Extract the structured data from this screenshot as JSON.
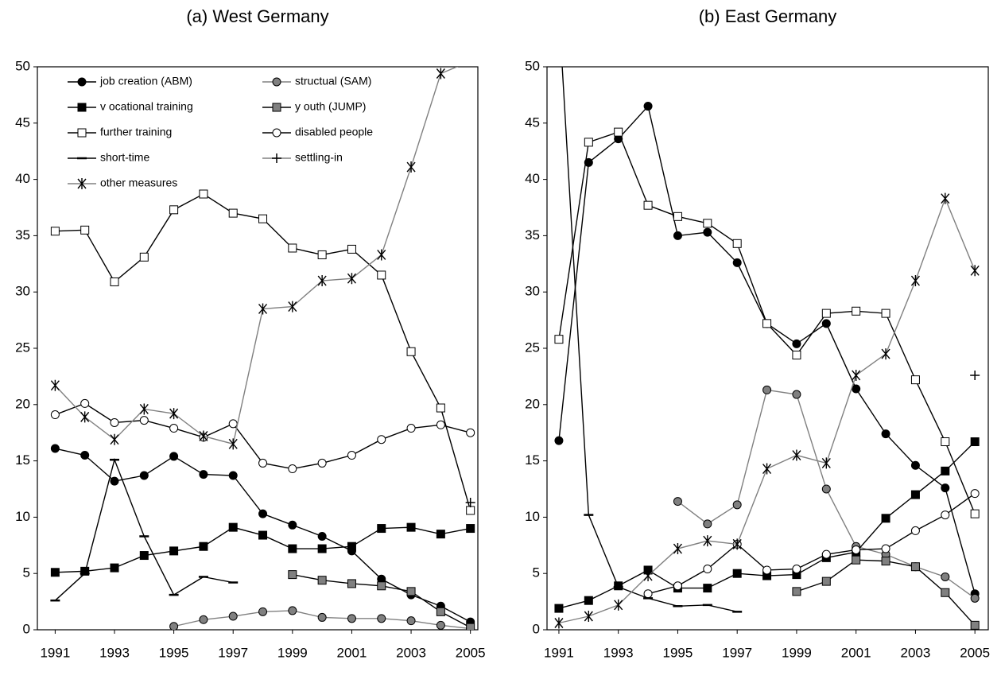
{
  "chart_data": [
    {
      "type": "line",
      "title": "(a) West Germany",
      "legend": "upper left",
      "x": [
        1991,
        1992,
        1993,
        1994,
        1995,
        1996,
        1997,
        1998,
        1999,
        2000,
        2001,
        2002,
        2003,
        2004,
        2005
      ],
      "xlim": [
        1990.4,
        2005.25
      ],
      "xticks": [
        1991,
        1993,
        1995,
        1997,
        1999,
        2001,
        2003,
        2005
      ],
      "ylim": [
        0,
        50
      ],
      "yticks": [
        0,
        5,
        10,
        15,
        20,
        25,
        30,
        35,
        40,
        45,
        50
      ],
      "series": [
        {
          "name": "job creation (ABM)",
          "color": "#000000",
          "marker": "circle",
          "marker_fill": "#000000",
          "values": [
            16.1,
            15.5,
            13.2,
            13.7,
            15.4,
            13.8,
            13.7,
            10.3,
            9.3,
            8.3,
            7.0,
            4.5,
            3.1,
            2.1,
            0.7
          ]
        },
        {
          "name": "structual (SAM)",
          "color": "#808080",
          "marker": "circle",
          "marker_fill": "#808080",
          "values": [
            null,
            null,
            null,
            null,
            0.3,
            0.9,
            1.2,
            1.6,
            1.7,
            1.1,
            1.0,
            1.0,
            0.8,
            0.4,
            0.1
          ]
        },
        {
          "name": "v ocational training",
          "color": "#000000",
          "marker": "square",
          "marker_fill": "#000000",
          "values": [
            5.1,
            5.2,
            5.5,
            6.6,
            7.0,
            7.4,
            9.1,
            8.4,
            7.2,
            7.2,
            7.4,
            9.0,
            9.1,
            8.5,
            9.0
          ]
        },
        {
          "name": "y outh (JUMP)",
          "color": "#000000",
          "marker": "square",
          "marker_fill": "#808080",
          "values": [
            null,
            null,
            null,
            null,
            null,
            null,
            null,
            null,
            4.9,
            4.4,
            4.1,
            3.9,
            3.4,
            1.6,
            0.2
          ]
        },
        {
          "name": "further training",
          "color": "#000000",
          "marker": "square",
          "marker_fill": "#ffffff",
          "values": [
            35.4,
            35.5,
            30.9,
            33.1,
            37.3,
            38.7,
            37.0,
            36.5,
            33.9,
            33.3,
            33.8,
            31.5,
            24.7,
            19.7,
            10.6
          ]
        },
        {
          "name": "disabled people",
          "color": "#000000",
          "marker": "circle",
          "marker_fill": "#ffffff",
          "values": [
            19.1,
            20.1,
            18.4,
            18.6,
            17.9,
            17.1,
            18.3,
            14.8,
            14.3,
            14.8,
            15.5,
            16.9,
            17.9,
            18.2,
            17.5
          ]
        },
        {
          "name": "short-time",
          "color": "#000000",
          "marker": "dash",
          "marker_fill": "#000000",
          "values": [
            2.6,
            5.0,
            15.1,
            8.3,
            3.1,
            4.7,
            4.2,
            null,
            null,
            null,
            null,
            null,
            null,
            null,
            null
          ]
        },
        {
          "name": "settling-in",
          "color": "#808080",
          "marker": "plus",
          "marker_fill": "#000000",
          "values": [
            null,
            null,
            null,
            null,
            null,
            null,
            null,
            null,
            null,
            null,
            null,
            null,
            null,
            null,
            11.3
          ]
        },
        {
          "name": "other measures",
          "color": "#808080",
          "marker": "star",
          "marker_fill": "#000000",
          "values": [
            21.7,
            18.9,
            16.9,
            19.6,
            19.2,
            17.2,
            16.5,
            28.5,
            28.7,
            31.0,
            31.2,
            33.3,
            41.1,
            49.4,
            50.5
          ]
        }
      ]
    },
    {
      "type": "line",
      "title": "(b) East Germany",
      "x": [
        1991,
        1992,
        1993,
        1994,
        1995,
        1996,
        1997,
        1998,
        1999,
        2000,
        2001,
        2002,
        2003,
        2004,
        2005
      ],
      "xlim": [
        1990.6,
        2005.45
      ],
      "xticks": [
        1991,
        1993,
        1995,
        1997,
        1999,
        2001,
        2003,
        2005
      ],
      "ylim": [
        0,
        50
      ],
      "yticks": [
        0,
        5,
        10,
        15,
        20,
        25,
        30,
        35,
        40,
        45,
        50
      ],
      "series": [
        {
          "color": "#000000",
          "marker": "circle",
          "marker_fill": "#000000",
          "values": [
            16.8,
            41.5,
            43.6,
            46.5,
            35.0,
            35.3,
            32.6,
            27.2,
            25.4,
            27.2,
            21.4,
            17.4,
            14.6,
            12.6,
            3.2
          ]
        },
        {
          "color": "#808080",
          "marker": "circle",
          "marker_fill": "#808080",
          "values": [
            null,
            null,
            null,
            null,
            11.4,
            9.4,
            11.1,
            21.3,
            20.9,
            12.5,
            7.4,
            6.7,
            5.6,
            4.7,
            2.8
          ]
        },
        {
          "color": "#000000",
          "marker": "square",
          "marker_fill": "#000000",
          "values": [
            1.9,
            2.6,
            3.9,
            5.3,
            3.7,
            3.7,
            5.0,
            4.8,
            4.9,
            6.4,
            6.9,
            9.9,
            12.0,
            14.1,
            16.7
          ]
        },
        {
          "color": "#000000",
          "marker": "square",
          "marker_fill": "#808080",
          "values": [
            null,
            null,
            null,
            null,
            null,
            null,
            null,
            null,
            3.4,
            4.3,
            6.2,
            6.1,
            5.6,
            3.3,
            0.4
          ]
        },
        {
          "color": "#000000",
          "marker": "square",
          "marker_fill": "#ffffff",
          "values": [
            25.8,
            43.3,
            44.2,
            37.7,
            36.7,
            36.1,
            34.3,
            27.2,
            24.4,
            28.1,
            28.3,
            28.1,
            22.2,
            16.7,
            10.3
          ]
        },
        {
          "color": "#000000",
          "marker": "circle",
          "marker_fill": "#ffffff",
          "values": [
            null,
            null,
            null,
            3.2,
            3.9,
            5.4,
            7.6,
            5.3,
            5.4,
            6.7,
            7.1,
            7.2,
            8.8,
            10.2,
            12.1
          ]
        },
        {
          "color": "#000000",
          "marker": "dash",
          "marker_fill": "#000000",
          "values": [
            55.0,
            10.2,
            3.8,
            2.8,
            2.1,
            2.2,
            1.6,
            null,
            null,
            null,
            null,
            null,
            null,
            null,
            null
          ]
        },
        {
          "color": "#808080",
          "marker": "plus",
          "marker_fill": "#000000",
          "values": [
            null,
            null,
            null,
            null,
            null,
            null,
            null,
            null,
            null,
            null,
            null,
            null,
            null,
            null,
            22.6
          ]
        },
        {
          "color": "#808080",
          "marker": "star",
          "marker_fill": "#000000",
          "values": [
            0.6,
            1.2,
            2.2,
            4.8,
            7.2,
            7.9,
            7.6,
            14.3,
            15.5,
            14.8,
            22.6,
            24.5,
            31.0,
            38.3,
            31.9
          ]
        }
      ]
    }
  ]
}
